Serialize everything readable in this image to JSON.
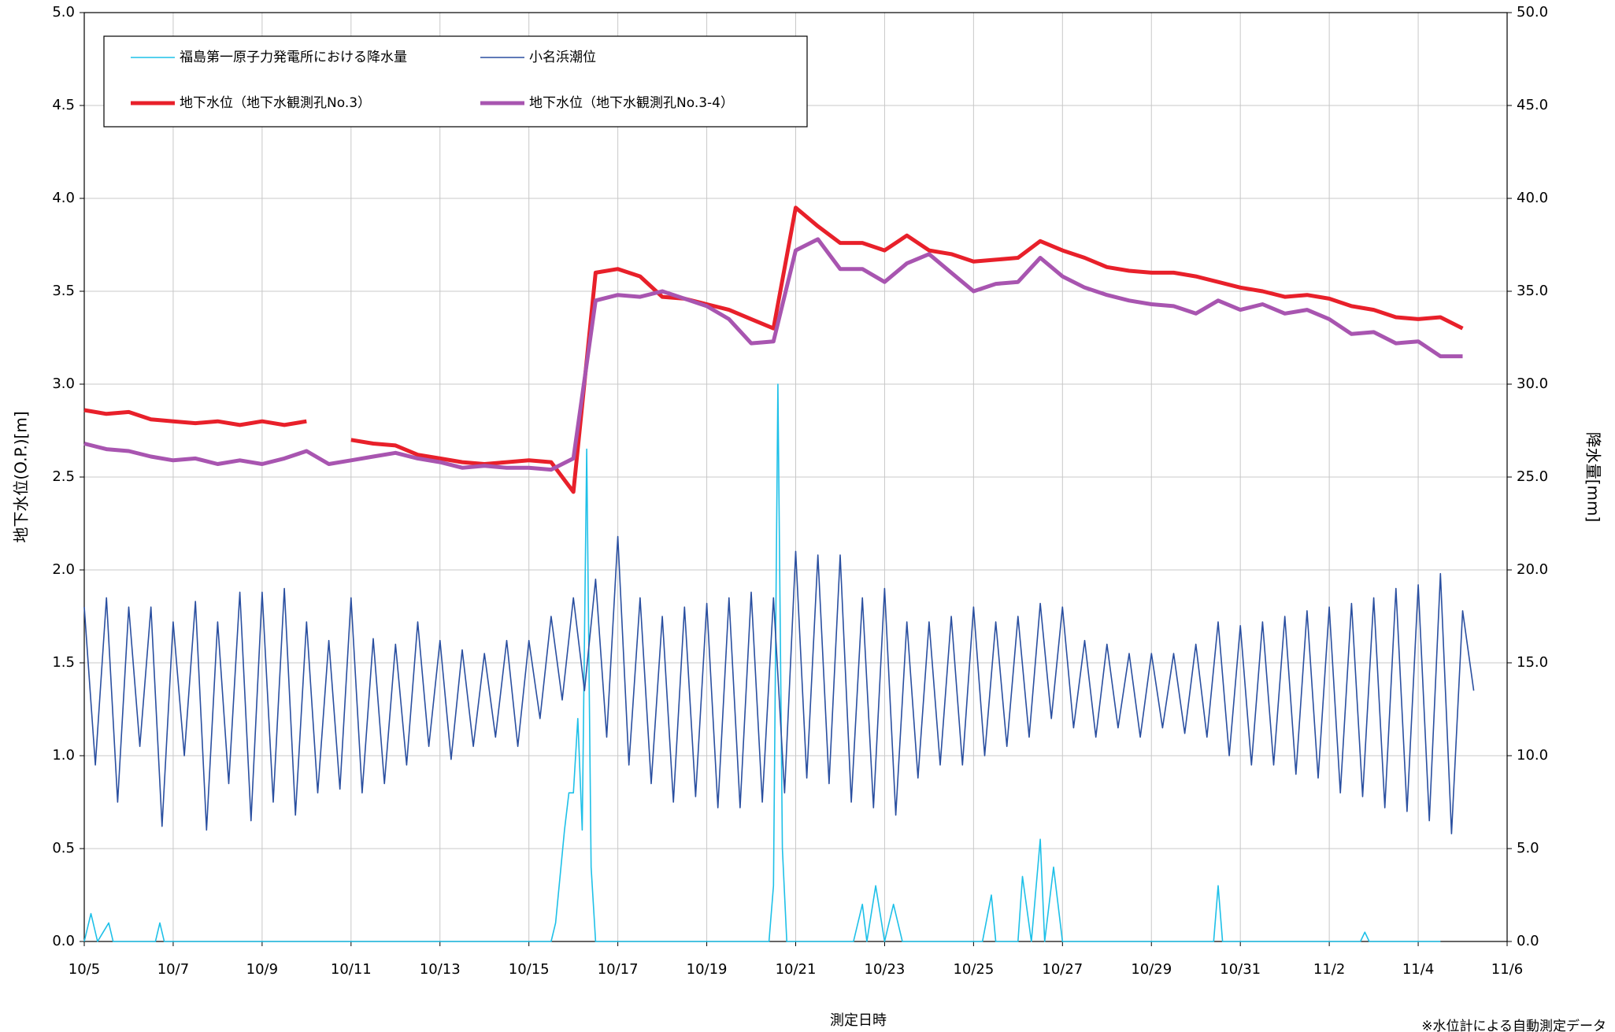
{
  "chart_data": {
    "type": "line",
    "xlabel": "測定日時",
    "ylabel": "地下水位(O.P.)[m]",
    "y2label": "降水量[mm]",
    "note": "※水位計による自動測定データ",
    "xlim": [
      0,
      32
    ],
    "xticks": [
      {
        "value": 0,
        "label": "10/5"
      },
      {
        "value": 2,
        "label": "10/7"
      },
      {
        "value": 4,
        "label": "10/9"
      },
      {
        "value": 6,
        "label": "10/11"
      },
      {
        "value": 8,
        "label": "10/13"
      },
      {
        "value": 10,
        "label": "10/15"
      },
      {
        "value": 12,
        "label": "10/17"
      },
      {
        "value": 14,
        "label": "10/19"
      },
      {
        "value": 16,
        "label": "10/21"
      },
      {
        "value": 18,
        "label": "10/23"
      },
      {
        "value": 20,
        "label": "10/25"
      },
      {
        "value": 22,
        "label": "10/27"
      },
      {
        "value": 24,
        "label": "10/29"
      },
      {
        "value": 26,
        "label": "10/31"
      },
      {
        "value": 28,
        "label": "11/2"
      },
      {
        "value": 30,
        "label": "11/4"
      },
      {
        "value": 32,
        "label": "11/6"
      }
    ],
    "ylim": [
      0,
      5
    ],
    "yticks": [
      {
        "value": 0,
        "label": "0.0"
      },
      {
        "value": 0.5,
        "label": "0.5"
      },
      {
        "value": 1,
        "label": "1.0"
      },
      {
        "value": 1.5,
        "label": "1.5"
      },
      {
        "value": 2,
        "label": "2.0"
      },
      {
        "value": 2.5,
        "label": "2.5"
      },
      {
        "value": 3,
        "label": "3.0"
      },
      {
        "value": 3.5,
        "label": "3.5"
      },
      {
        "value": 4,
        "label": "4.0"
      },
      {
        "value": 4.5,
        "label": "4.5"
      },
      {
        "value": 5,
        "label": "5.0"
      }
    ],
    "y2lim": [
      0,
      50
    ],
    "y2ticks": [
      {
        "value": 0,
        "label": "0.0"
      },
      {
        "value": 5,
        "label": "5.0"
      },
      {
        "value": 10,
        "label": "10.0"
      },
      {
        "value": 15,
        "label": "15.0"
      },
      {
        "value": 20,
        "label": "20.0"
      },
      {
        "value": 25,
        "label": "25.0"
      },
      {
        "value": 30,
        "label": "30.0"
      },
      {
        "value": 35,
        "label": "35.0"
      },
      {
        "value": 40,
        "label": "40.0"
      },
      {
        "value": 45,
        "label": "45.0"
      },
      {
        "value": 50,
        "label": "50.0"
      }
    ],
    "grid": true,
    "series": [
      {
        "name": "福島第一原子力発電所における降水量",
        "color": "#1ec0e8",
        "axis": "y2",
        "x": [
          0,
          0.15,
          0.3,
          0.55,
          0.65,
          0.8,
          1.6,
          1.7,
          1.8,
          10.5,
          10.6,
          10.8,
          10.9,
          11.0,
          11.1,
          11.2,
          11.3,
          11.4,
          11.5,
          15.4,
          15.5,
          15.6,
          15.7,
          15.8,
          17.3,
          17.5,
          17.6,
          17.8,
          18.0,
          18.2,
          18.4,
          20.2,
          20.4,
          20.5,
          21.0,
          21.1,
          21.3,
          21.5,
          21.6,
          21.8,
          22.0,
          25.4,
          25.5,
          25.6,
          28.7,
          28.8,
          28.9,
          29.2,
          29.3,
          30.5
        ],
        "values": [
          0,
          1.5,
          0,
          1,
          0,
          0,
          0,
          1,
          0,
          0,
          1,
          6,
          8,
          8,
          12,
          6,
          26.5,
          4,
          0,
          0,
          3,
          30,
          5,
          0,
          0,
          2,
          0,
          3,
          0,
          2,
          0,
          0,
          2.5,
          0,
          0,
          3.5,
          0,
          5.5,
          0,
          4,
          0,
          0,
          3,
          0,
          0,
          0.5,
          0,
          0,
          0,
          0
        ]
      },
      {
        "name": "小名浜潮位",
        "color": "#2a4fa0",
        "x": [
          0,
          0.25,
          0.5,
          0.75,
          1,
          1.25,
          1.5,
          1.75,
          2,
          2.25,
          2.5,
          2.75,
          3,
          3.25,
          3.5,
          3.75,
          4,
          4.25,
          4.5,
          4.75,
          5,
          5.25,
          5.5,
          5.75,
          6,
          6.25,
          6.5,
          6.75,
          7,
          7.25,
          7.5,
          7.75,
          8,
          8.25,
          8.5,
          8.75,
          9,
          9.25,
          9.5,
          9.75,
          10,
          10.25,
          10.5,
          10.75,
          11,
          11.25,
          11.5,
          11.75,
          12,
          12.25,
          12.5,
          12.75,
          13,
          13.25,
          13.5,
          13.75,
          14,
          14.25,
          14.5,
          14.75,
          15,
          15.25,
          15.5,
          15.75,
          16,
          16.25,
          16.5,
          16.75,
          17,
          17.25,
          17.5,
          17.75,
          18,
          18.25,
          18.5,
          18.75,
          19,
          19.25,
          19.5,
          19.75,
          20,
          20.25,
          20.5,
          20.75,
          21,
          21.25,
          21.5,
          21.75,
          22,
          22.25,
          22.5,
          22.75,
          23,
          23.25,
          23.5,
          23.75,
          24,
          24.25,
          24.5,
          24.75,
          25,
          25.25,
          25.5,
          25.75,
          26,
          26.25,
          26.5,
          26.75,
          27,
          27.25,
          27.5,
          27.75,
          28,
          28.25,
          28.5,
          28.75,
          29,
          29.25,
          29.5,
          29.75,
          30,
          30.25,
          30.5,
          30.75,
          31,
          31.25
        ],
        "values": [
          1.8,
          0.95,
          1.85,
          0.75,
          1.8,
          1.05,
          1.8,
          0.62,
          1.72,
          1.0,
          1.83,
          0.6,
          1.72,
          0.85,
          1.88,
          0.65,
          1.88,
          0.75,
          1.9,
          0.68,
          1.72,
          0.8,
          1.62,
          0.82,
          1.85,
          0.8,
          1.63,
          0.85,
          1.6,
          0.95,
          1.72,
          1.05,
          1.62,
          0.98,
          1.57,
          1.05,
          1.55,
          1.1,
          1.62,
          1.05,
          1.62,
          1.2,
          1.75,
          1.3,
          1.85,
          1.35,
          1.95,
          1.1,
          2.18,
          0.95,
          1.85,
          0.85,
          1.75,
          0.75,
          1.8,
          0.78,
          1.82,
          0.72,
          1.85,
          0.72,
          1.88,
          0.75,
          1.85,
          0.8,
          2.1,
          0.88,
          2.08,
          0.85,
          2.08,
          0.75,
          1.85,
          0.72,
          1.9,
          0.68,
          1.72,
          0.88,
          1.72,
          0.95,
          1.75,
          0.95,
          1.8,
          1.0,
          1.72,
          1.05,
          1.75,
          1.1,
          1.82,
          1.2,
          1.8,
          1.15,
          1.62,
          1.1,
          1.6,
          1.15,
          1.55,
          1.1,
          1.55,
          1.15,
          1.55,
          1.12,
          1.6,
          1.1,
          1.72,
          1.0,
          1.7,
          0.95,
          1.72,
          0.95,
          1.75,
          0.9,
          1.78,
          0.88,
          1.8,
          0.8,
          1.82,
          0.78,
          1.85,
          0.72,
          1.9,
          0.7,
          1.92,
          0.65,
          1.98,
          0.58,
          1.78,
          1.35
        ]
      },
      {
        "name": "地下水位（地下水観測孔No.3）",
        "color": "#e8202a",
        "x": [
          0,
          0.5,
          1,
          1.5,
          2,
          2.5,
          3,
          3.5,
          4,
          4.5,
          5,
          5.5,
          6,
          6.5,
          7,
          7.5,
          8,
          8.5,
          9,
          9.5,
          10,
          10.5,
          11,
          11.5,
          12,
          12.5,
          13,
          13.5,
          14,
          14.5,
          15,
          15.5,
          16,
          16.5,
          17,
          17.5,
          18,
          18.5,
          19,
          19.5,
          20,
          20.5,
          21,
          21.5,
          22,
          22.5,
          23,
          23.5,
          24,
          24.5,
          25,
          25.5,
          26,
          26.5,
          27,
          27.5,
          28,
          28.5,
          29,
          29.5,
          30,
          30.5,
          31
        ],
        "values": [
          2.86,
          2.84,
          2.85,
          2.81,
          2.8,
          2.79,
          2.8,
          2.78,
          2.8,
          2.78,
          2.8,
          null,
          2.7,
          2.68,
          2.67,
          2.62,
          2.6,
          2.58,
          2.57,
          2.58,
          2.59,
          2.58,
          2.42,
          3.6,
          3.62,
          3.58,
          3.47,
          3.46,
          3.43,
          3.4,
          3.35,
          3.3,
          3.95,
          3.85,
          3.76,
          3.76,
          3.72,
          3.8,
          3.72,
          3.7,
          3.66,
          3.67,
          3.68,
          3.77,
          3.72,
          3.68,
          3.63,
          3.61,
          3.6,
          3.6,
          3.58,
          3.55,
          3.52,
          3.5,
          3.47,
          3.48,
          3.46,
          3.42,
          3.4,
          3.36,
          3.35,
          3.36,
          3.3
        ]
      },
      {
        "name": "地下水位（地下水観測孔No.3-4）",
        "color": "#a855b0",
        "x": [
          0,
          0.5,
          1,
          1.5,
          2,
          2.5,
          3,
          3.5,
          4,
          4.5,
          5,
          5.5,
          6,
          6.5,
          7,
          7.5,
          8,
          8.5,
          9,
          9.5,
          10,
          10.5,
          11,
          11.5,
          12,
          12.5,
          13,
          13.5,
          14,
          14.5,
          15,
          15.5,
          16,
          16.5,
          17,
          17.5,
          18,
          18.5,
          19,
          19.5,
          20,
          20.5,
          21,
          21.5,
          22,
          22.5,
          23,
          23.5,
          24,
          24.5,
          25,
          25.5,
          26,
          26.5,
          27,
          27.5,
          28,
          28.5,
          29,
          29.5,
          30,
          30.5,
          31
        ],
        "values": [
          2.68,
          2.65,
          2.64,
          2.61,
          2.59,
          2.6,
          2.57,
          2.59,
          2.57,
          2.6,
          2.64,
          2.57,
          2.59,
          2.61,
          2.63,
          2.6,
          2.58,
          2.55,
          2.56,
          2.55,
          2.55,
          2.54,
          2.6,
          3.45,
          3.48,
          3.47,
          3.5,
          3.46,
          3.42,
          3.35,
          3.22,
          3.23,
          3.72,
          3.78,
          3.62,
          3.62,
          3.55,
          3.65,
          3.7,
          3.6,
          3.5,
          3.54,
          3.55,
          3.68,
          3.58,
          3.52,
          3.48,
          3.45,
          3.43,
          3.42,
          3.38,
          3.45,
          3.4,
          3.43,
          3.38,
          3.4,
          3.35,
          3.27,
          3.28,
          3.22,
          3.23,
          3.15,
          3.15
        ]
      }
    ]
  }
}
